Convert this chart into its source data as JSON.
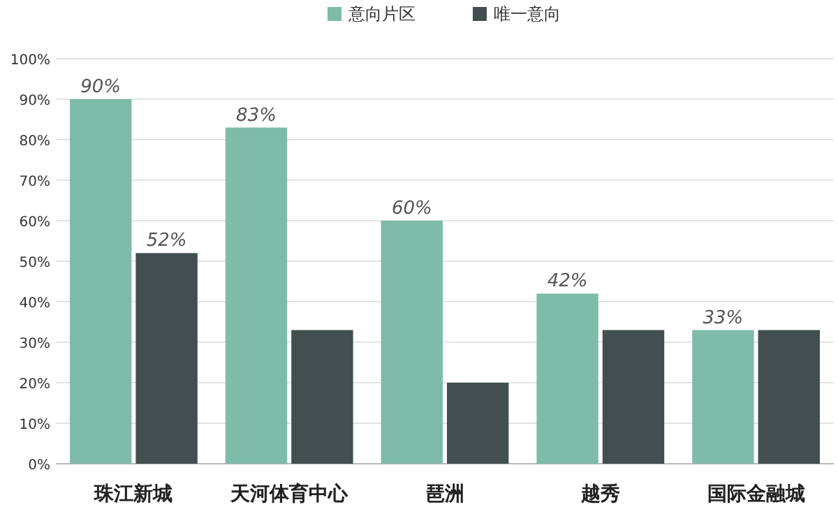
{
  "chart_data": {
    "type": "bar",
    "categories": [
      "珠江新城",
      "天河体育中心",
      "琶洲",
      "越秀",
      "国际金融城"
    ],
    "series": [
      {
        "name": "意向片区",
        "color": "#7fbba9",
        "values": [
          90,
          83,
          60,
          42,
          33
        ],
        "value_labels": [
          "90%",
          "83%",
          "60%",
          "42%",
          "33%"
        ]
      },
      {
        "name": "唯一意向",
        "color": "#434f4f",
        "values": [
          52,
          33,
          20,
          33,
          33
        ],
        "value_labels": [
          "52%",
          null,
          null,
          null,
          null
        ]
      }
    ],
    "ylim": [
      0,
      100
    ],
    "yticks": [
      {
        "value": 0,
        "label": "0%"
      },
      {
        "value": 10,
        "label": "10%"
      },
      {
        "value": 20,
        "label": "20%"
      },
      {
        "value": 30,
        "label": "30%"
      },
      {
        "value": 40,
        "label": "40%"
      },
      {
        "value": 50,
        "label": "50%"
      },
      {
        "value": 60,
        "label": "60%"
      },
      {
        "value": 70,
        "label": "70%"
      },
      {
        "value": 80,
        "label": "80%"
      },
      {
        "value": 90,
        "label": "90%"
      },
      {
        "value": 100,
        "label": "100%"
      }
    ],
    "grid": "y",
    "legend": "top"
  }
}
